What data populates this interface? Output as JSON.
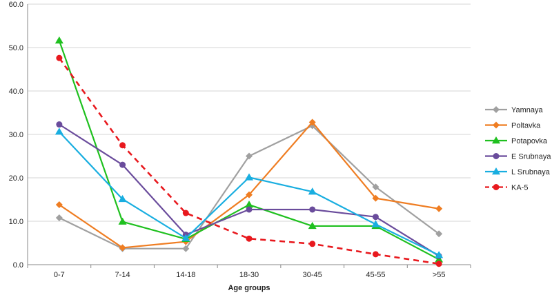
{
  "chart_data": {
    "type": "line",
    "title": "",
    "xlabel": "Age groups",
    "ylabel": "",
    "categories": [
      "0-7",
      "7-14",
      "14-18",
      "18-30",
      "30-45",
      "45-55",
      ">55"
    ],
    "ylim": [
      0,
      60
    ],
    "yticks": [
      "0.0",
      "10.0",
      "20.0",
      "30.0",
      "40.0",
      "50.0",
      "60.0"
    ],
    "grid": true,
    "legend_position": "right",
    "series": [
      {
        "name": "Yamnaya",
        "color": "#a0a0a0",
        "marker": "diamond",
        "dash": false,
        "values": [
          10.8,
          3.7,
          3.7,
          25.0,
          32.0,
          17.9,
          7.1
        ]
      },
      {
        "name": "Poltavka",
        "color": "#ef7d22",
        "marker": "diamond",
        "dash": false,
        "values": [
          13.8,
          3.9,
          5.3,
          16.1,
          32.8,
          15.3,
          12.9
        ]
      },
      {
        "name": "Potapovka",
        "color": "#1fc01f",
        "marker": "triangle",
        "dash": false,
        "values": [
          51.6,
          9.9,
          5.9,
          13.8,
          8.9,
          8.9,
          1.2
        ]
      },
      {
        "name": "E Srubnaya",
        "color": "#6a4c9c",
        "marker": "circle",
        "dash": false,
        "values": [
          32.3,
          23.0,
          6.9,
          12.7,
          12.7,
          11.0,
          2.0
        ]
      },
      {
        "name": "L Srubnaya",
        "color": "#19aee0",
        "marker": "triangle",
        "dash": false,
        "values": [
          30.6,
          15.1,
          6.1,
          20.1,
          16.8,
          9.3,
          2.2
        ]
      },
      {
        "name": "KA-5",
        "color": "#e8191e",
        "marker": "circle",
        "dash": true,
        "values": [
          47.6,
          27.5,
          11.9,
          6.0,
          4.8,
          2.4,
          0.2
        ]
      }
    ]
  }
}
